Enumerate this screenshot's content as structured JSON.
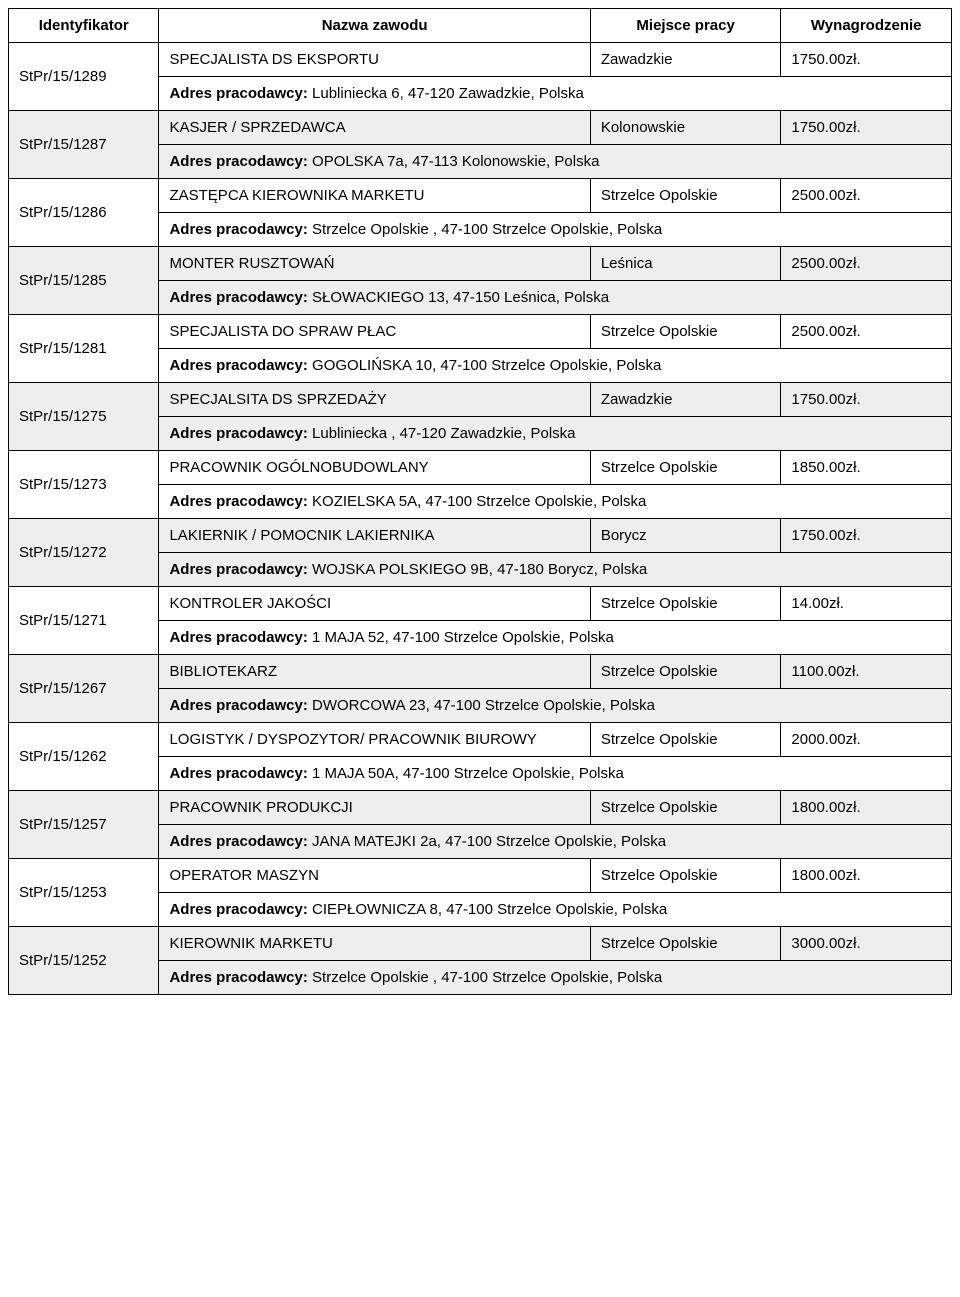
{
  "columns": {
    "id": "Identyfikator",
    "job": "Nazwa zawodu",
    "place": "Miejsce pracy",
    "salary": "Wynagrodzenie"
  },
  "address_label": "Adres pracodawcy:",
  "rows": [
    {
      "id": "StPr/15/1289",
      "job": "SPECJALISTA DS EKSPORTU",
      "place": "Zawadzkie",
      "salary": "1750.00zł.",
      "address": "Lubliniecka 6, 47-120 Zawadzkie, Polska",
      "shaded": false
    },
    {
      "id": "StPr/15/1287",
      "job": "KASJER / SPRZEDAWCA",
      "place": "Kolonowskie",
      "salary": "1750.00zł.",
      "address": "OPOLSKA 7a, 47-113 Kolonowskie, Polska",
      "shaded": true
    },
    {
      "id": "StPr/15/1286",
      "job": "ZASTĘPCA KIEROWNIKA MARKETU",
      "place": "Strzelce Opolskie",
      "salary": "2500.00zł.",
      "address": "Strzelce Opolskie , 47-100 Strzelce Opolskie, Polska",
      "shaded": false
    },
    {
      "id": "StPr/15/1285",
      "job": "MONTER RUSZTOWAŃ",
      "place": "Leśnica",
      "salary": "2500.00zł.",
      "address": "SŁOWACKIEGO 13, 47-150 Leśnica, Polska",
      "shaded": true
    },
    {
      "id": "StPr/15/1281",
      "job": "SPECJALISTA DO SPRAW PŁAC",
      "place": "Strzelce Opolskie",
      "salary": "2500.00zł.",
      "address": "GOGOLIŃSKA 10, 47-100 Strzelce Opolskie, Polska",
      "shaded": false
    },
    {
      "id": "StPr/15/1275",
      "job": "SPECJALSITA DS SPRZEDAŻY",
      "place": "Zawadzkie",
      "salary": "1750.00zł.",
      "address": "Lubliniecka , 47-120 Zawadzkie, Polska",
      "shaded": true
    },
    {
      "id": "StPr/15/1273",
      "job": "PRACOWNIK OGÓLNOBUDOWLANY",
      "place": "Strzelce Opolskie",
      "salary": "1850.00zł.",
      "address": "KOZIELSKA 5A, 47-100 Strzelce Opolskie, Polska",
      "shaded": false
    },
    {
      "id": "StPr/15/1272",
      "job": "LAKIERNIK / POMOCNIK LAKIERNIKA",
      "place": "Borycz",
      "salary": "1750.00zł.",
      "address": "WOJSKA POLSKIEGO 9B, 47-180 Borycz, Polska",
      "shaded": true
    },
    {
      "id": "StPr/15/1271",
      "job": "KONTROLER JAKOŚCI",
      "place": "Strzelce Opolskie",
      "salary": "14.00zł.",
      "address": "1 MAJA 52, 47-100 Strzelce Opolskie, Polska",
      "shaded": false
    },
    {
      "id": "StPr/15/1267",
      "job": "BIBLIOTEKARZ",
      "place": "Strzelce Opolskie",
      "salary": "1100.00zł.",
      "address": "DWORCOWA 23, 47-100 Strzelce Opolskie, Polska",
      "shaded": true
    },
    {
      "id": "StPr/15/1262",
      "job": "LOGISTYK / DYSPOZYTOR/ PRACOWNIK BIUROWY",
      "place": "Strzelce Opolskie",
      "salary": "2000.00zł.",
      "address": "1 MAJA 50A, 47-100 Strzelce Opolskie, Polska",
      "shaded": false
    },
    {
      "id": "StPr/15/1257",
      "job": "PRACOWNIK PRODUKCJI",
      "place": "Strzelce Opolskie",
      "salary": "1800.00zł.",
      "address": "JANA MATEJKI 2a, 47-100 Strzelce Opolskie, Polska",
      "shaded": true
    },
    {
      "id": "StPr/15/1253",
      "job": "OPERATOR MASZYN",
      "place": "Strzelce Opolskie",
      "salary": "1800.00zł.",
      "address": "CIEPŁOWNICZA 8, 47-100 Strzelce Opolskie, Polska",
      "shaded": false
    },
    {
      "id": "StPr/15/1252",
      "job": "KIEROWNIK MARKETU",
      "place": "Strzelce Opolskie",
      "salary": "3000.00zł.",
      "address": "Strzelce Opolskie , 47-100 Strzelce Opolskie, Polska",
      "shaded": true
    }
  ]
}
